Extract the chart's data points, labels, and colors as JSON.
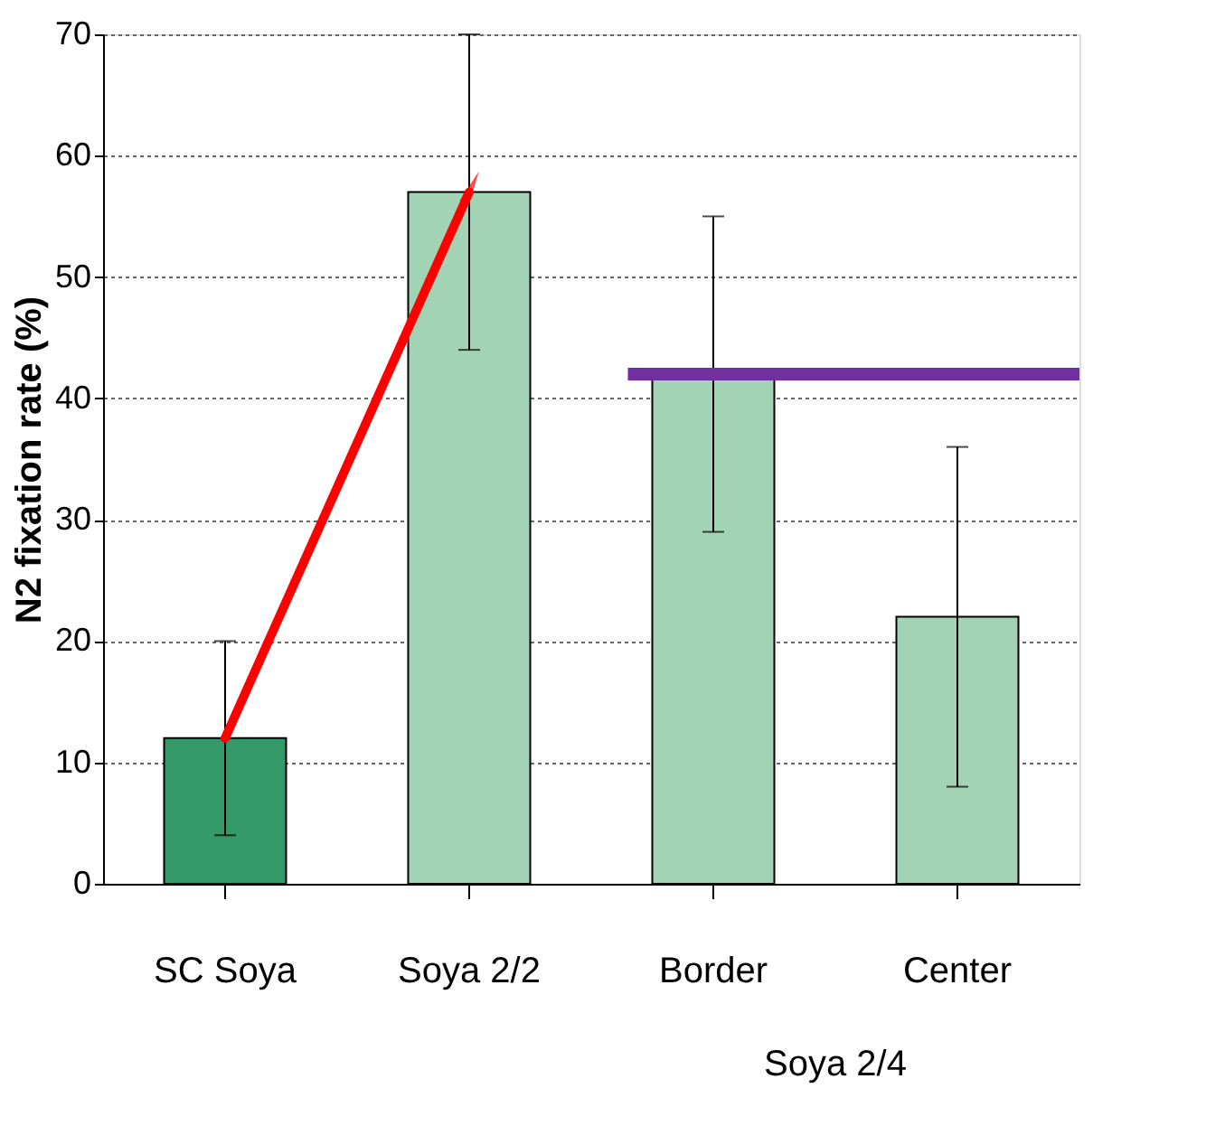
{
  "chart_data": {
    "type": "bar",
    "ylabel": "N2 fixation rate (%)",
    "categories": [
      "SC Soya",
      "Soya 2/2",
      "Border",
      "Center"
    ],
    "values": [
      12,
      57,
      42,
      22
    ],
    "errors": [
      8,
      13,
      13,
      14
    ],
    "colors": [
      "#339966",
      "#a3d3b5",
      "#a3d3b5",
      "#a3d3b5"
    ],
    "ylim": [
      0,
      70
    ],
    "yticks": [
      0,
      10,
      20,
      30,
      40,
      50,
      60,
      70
    ],
    "grid": "y",
    "ref_lines": [
      {
        "axis": "y",
        "value": 42,
        "color": "#7030a0"
      }
    ],
    "annotations": [
      "Soya 2/4"
    ]
  }
}
